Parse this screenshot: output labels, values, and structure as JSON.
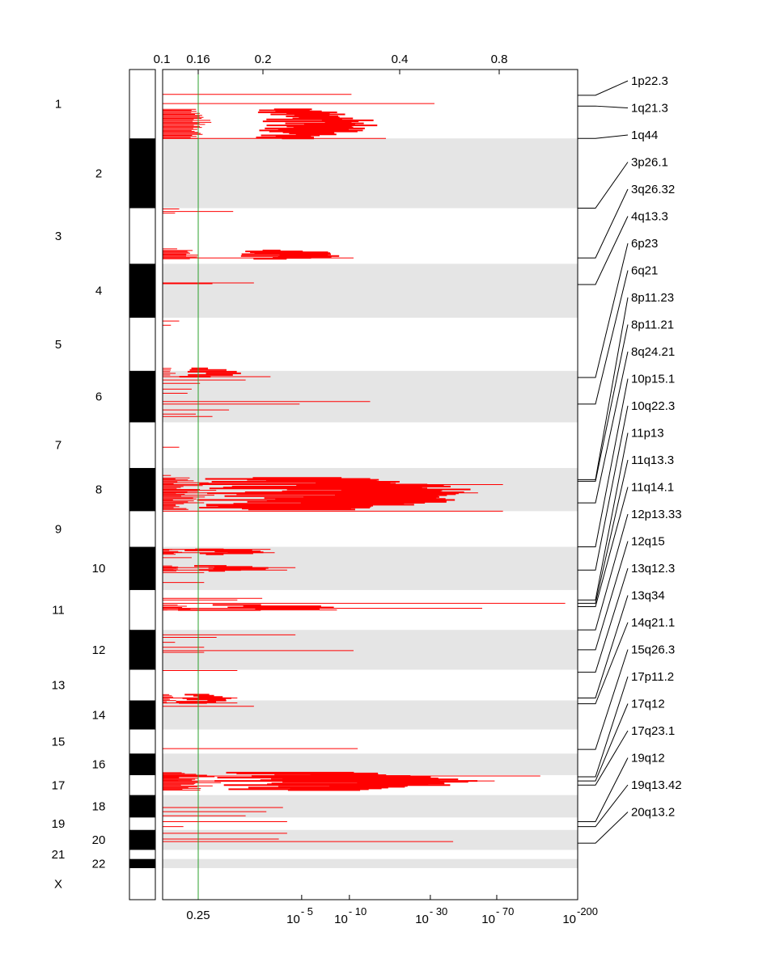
{
  "chart_data": {
    "type": "genome-segments",
    "title": "",
    "top_axis": {
      "ticks": [
        "0.1",
        "0.16",
        "0.2",
        "0.4",
        "0.8"
      ],
      "tick_values": [
        0.1,
        0.16,
        0.2,
        0.4,
        0.8
      ]
    },
    "bottom_axis": {
      "ticks": [
        {
          "base": "0.25",
          "exp": ""
        },
        {
          "base": "10",
          "exp": "- 5"
        },
        {
          "base": "10",
          "exp": "- 10"
        },
        {
          "base": "10",
          "exp": "- 30"
        },
        {
          "base": "10",
          "exp": "- 70"
        },
        {
          "base": "10",
          "exp": "-200"
        }
      ],
      "tick_positions": [
        0.085,
        0.335,
        0.45,
        0.645,
        0.805,
        1.0
      ]
    },
    "threshold": {
      "value": 0.16,
      "q_value": 0.25,
      "color": "#2ca02c"
    },
    "chromosome_labels": [
      "1",
      "2",
      "3",
      "4",
      "5",
      "6",
      "7",
      "8",
      "9",
      "10",
      "11",
      "12",
      "13",
      "14",
      "15",
      "16",
      "17",
      "18",
      "19",
      "20",
      "21",
      "22",
      "X"
    ],
    "chromosome_extents": [
      [
        0.0,
        0.083
      ],
      [
        0.083,
        0.167
      ],
      [
        0.167,
        0.234
      ],
      [
        0.234,
        0.299
      ],
      [
        0.299,
        0.363
      ],
      [
        0.363,
        0.425
      ],
      [
        0.425,
        0.48
      ],
      [
        0.48,
        0.532
      ],
      [
        0.532,
        0.575
      ],
      [
        0.575,
        0.627
      ],
      [
        0.627,
        0.675
      ],
      [
        0.675,
        0.723
      ],
      [
        0.723,
        0.76
      ],
      [
        0.76,
        0.795
      ],
      [
        0.795,
        0.824
      ],
      [
        0.824,
        0.85
      ],
      [
        0.85,
        0.874
      ],
      [
        0.874,
        0.901
      ],
      [
        0.901,
        0.916
      ],
      [
        0.916,
        0.94
      ],
      [
        0.94,
        0.951
      ],
      [
        0.951,
        0.962
      ],
      [
        0.962,
        1.0
      ]
    ],
    "peaks": [
      {
        "label": "1p22.3",
        "pos": 0.031
      },
      {
        "label": "1q21.3",
        "pos": 0.044
      },
      {
        "label": "1q44",
        "pos": 0.083
      },
      {
        "label": "3p26.1",
        "pos": 0.167
      },
      {
        "label": "3q26.32",
        "pos": 0.227
      },
      {
        "label": "4q13.3",
        "pos": 0.259
      },
      {
        "label": "6p23",
        "pos": 0.371
      },
      {
        "label": "6q21",
        "pos": 0.403
      },
      {
        "label": "8p11.23",
        "pos": 0.494
      },
      {
        "label": "8p11.21",
        "pos": 0.496
      },
      {
        "label": "8q24.21",
        "pos": 0.522
      },
      {
        "label": "10p15.1",
        "pos": 0.575
      },
      {
        "label": "10q22.3",
        "pos": 0.603
      },
      {
        "label": "11p13",
        "pos": 0.639
      },
      {
        "label": "11q13.3",
        "pos": 0.643
      },
      {
        "label": "11q14.1",
        "pos": 0.647
      },
      {
        "label": "12p13.33",
        "pos": 0.675
      },
      {
        "label": "12q15",
        "pos": 0.699
      },
      {
        "label": "13q12.3",
        "pos": 0.726
      },
      {
        "label": "13q34",
        "pos": 0.757
      },
      {
        "label": "14q21.1",
        "pos": 0.764
      },
      {
        "label": "15q26.3",
        "pos": 0.819
      },
      {
        "label": "17p11.2",
        "pos": 0.852
      },
      {
        "label": "17q12",
        "pos": 0.857
      },
      {
        "label": "17q23.1",
        "pos": 0.862
      },
      {
        "label": "19q12",
        "pos": 0.906
      },
      {
        "label": "19q13.42",
        "pos": 0.912
      },
      {
        "label": "20q13.2",
        "pos": 0.932
      }
    ],
    "score_segments": [
      {
        "pos": 0.03,
        "len": 0.455
      },
      {
        "pos": 0.041,
        "len": 0.655
      },
      {
        "pos": 0.083,
        "len": 0.538
      },
      {
        "pos": 0.168,
        "len": 0.04
      },
      {
        "pos": 0.171,
        "len": 0.17
      },
      {
        "pos": 0.173,
        "len": 0.03
      },
      {
        "pos": 0.216,
        "len": 0.035
      },
      {
        "pos": 0.227,
        "len": 0.46
      },
      {
        "pos": 0.257,
        "len": 0.22
      },
      {
        "pos": 0.258,
        "len": 0.12
      },
      {
        "pos": 0.303,
        "len": 0.04
      },
      {
        "pos": 0.308,
        "len": 0.02
      },
      {
        "pos": 0.37,
        "len": 0.26
      },
      {
        "pos": 0.374,
        "len": 0.2
      },
      {
        "pos": 0.378,
        "len": 0.09
      },
      {
        "pos": 0.385,
        "len": 0.07
      },
      {
        "pos": 0.39,
        "len": 0.06
      },
      {
        "pos": 0.4,
        "len": 0.5
      },
      {
        "pos": 0.403,
        "len": 0.33
      },
      {
        "pos": 0.41,
        "len": 0.16
      },
      {
        "pos": 0.415,
        "len": 0.08
      },
      {
        "pos": 0.418,
        "len": 0.12
      },
      {
        "pos": 0.455,
        "len": 0.04
      },
      {
        "pos": 0.489,
        "len": 0.02
      },
      {
        "pos": 0.5,
        "len": 0.82
      },
      {
        "pos": 0.51,
        "len": 0.76
      },
      {
        "pos": 0.532,
        "len": 0.82
      },
      {
        "pos": 0.578,
        "len": 0.26
      },
      {
        "pos": 0.582,
        "len": 0.27
      },
      {
        "pos": 0.588,
        "len": 0.07
      },
      {
        "pos": 0.6,
        "len": 0.32
      },
      {
        "pos": 0.603,
        "len": 0.3
      },
      {
        "pos": 0.606,
        "len": 0.1
      },
      {
        "pos": 0.618,
        "len": 0.1
      },
      {
        "pos": 0.637,
        "len": 0.24
      },
      {
        "pos": 0.639,
        "len": 0.18
      },
      {
        "pos": 0.643,
        "len": 0.97
      },
      {
        "pos": 0.649,
        "len": 0.77
      },
      {
        "pos": 0.651,
        "len": 0.42
      },
      {
        "pos": 0.681,
        "len": 0.32
      },
      {
        "pos": 0.684,
        "len": 0.13
      },
      {
        "pos": 0.69,
        "len": 0.03
      },
      {
        "pos": 0.696,
        "len": 0.1
      },
      {
        "pos": 0.7,
        "len": 0.46
      },
      {
        "pos": 0.702,
        "len": 0.1
      },
      {
        "pos": 0.724,
        "len": 0.18
      },
      {
        "pos": 0.757,
        "len": 0.18
      },
      {
        "pos": 0.763,
        "len": 0.18
      },
      {
        "pos": 0.767,
        "len": 0.22
      },
      {
        "pos": 0.818,
        "len": 0.47
      },
      {
        "pos": 0.851,
        "len": 0.91
      },
      {
        "pos": 0.857,
        "len": 0.8
      },
      {
        "pos": 0.889,
        "len": 0.29
      },
      {
        "pos": 0.894,
        "len": 0.25
      },
      {
        "pos": 0.899,
        "len": 0.2
      },
      {
        "pos": 0.906,
        "len": 0.3
      },
      {
        "pos": 0.912,
        "len": 0.05
      },
      {
        "pos": 0.92,
        "len": 0.3
      },
      {
        "pos": 0.927,
        "len": 0.28
      },
      {
        "pos": 0.93,
        "len": 0.7
      }
    ],
    "wavy_clusters": [
      {
        "start": 0.048,
        "end": 0.083,
        "min": 0.22,
        "max": 0.52,
        "count": 30
      },
      {
        "start": 0.218,
        "end": 0.228,
        "min": 0.14,
        "max": 0.46,
        "count": 10
      },
      {
        "start": 0.36,
        "end": 0.37,
        "min": 0.04,
        "max": 0.2,
        "count": 6
      },
      {
        "start": 0.492,
        "end": 0.53,
        "min": 0.08,
        "max": 0.79,
        "count": 34
      },
      {
        "start": 0.578,
        "end": 0.584,
        "min": 0.04,
        "max": 0.26,
        "count": 6
      },
      {
        "start": 0.598,
        "end": 0.604,
        "min": 0.04,
        "max": 0.26,
        "count": 6
      },
      {
        "start": 0.645,
        "end": 0.651,
        "min": 0.03,
        "max": 0.45,
        "count": 5
      },
      {
        "start": 0.753,
        "end": 0.763,
        "min": 0.03,
        "max": 0.18,
        "count": 8
      },
      {
        "start": 0.847,
        "end": 0.868,
        "min": 0.1,
        "max": 0.79,
        "count": 22
      }
    ]
  }
}
